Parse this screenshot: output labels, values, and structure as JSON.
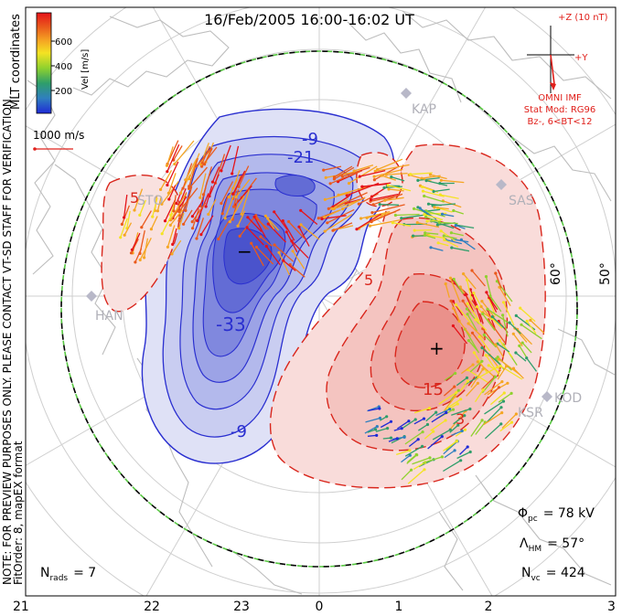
{
  "title": "16/Feb/2005 16:00-16:02 UT",
  "colorbar": {
    "label": "Vel [m/s]",
    "ticks": [
      "600",
      "400",
      "200"
    ],
    "colors": [
      "#1f2bd6",
      "#2f7fbf",
      "#2e9e6a",
      "#8fd12e",
      "#f4e323",
      "#f5a623",
      "#ea5a1c",
      "#e5131a"
    ]
  },
  "coordinates_label": "MLT coordinates",
  "scale": {
    "label": "1000 m/s",
    "color": "#e0201b"
  },
  "imf": {
    "z_label": "+Z (10 nT)",
    "y_label": "+Y",
    "source": "OMNI IMF",
    "model": "Stat Mod: RG96",
    "condition": "Bz-, 6<BT<12",
    "color": "#e0201b"
  },
  "notes": {
    "preview": "NOTE: FOR PREVIEW PURPOSES ONLY. PLEASE CONTACT VT-SD STAFF FOR VERIFICATION.",
    "fit": "FitOrder: 8, mapEX format"
  },
  "stats": {
    "phi_pc_sym": "Φ",
    "phi_pc_sub": "pc",
    "phi_pc_val": "= 78 kV",
    "lambda_hm_sym": "Λ",
    "lambda_hm_sub": "HM",
    "lambda_hm_val": "= 57°",
    "n_vc_sym": "N",
    "n_vc_sub": "vc",
    "n_vc_val": "= 424"
  },
  "n_rads": {
    "sym": "N",
    "sub": "rads",
    "val": "= 7"
  },
  "lat_labels": [
    "60°",
    "50°"
  ],
  "stations": [
    "KAP",
    "SAS",
    "STO",
    "HAN",
    "KOD",
    "KSR"
  ],
  "mlt_axis": [
    "21",
    "22",
    "23",
    "0",
    "1",
    "2",
    "3"
  ],
  "contour_labels": [
    "-9",
    "-21",
    "-33",
    "-9",
    "15",
    "-15",
    "5",
    "3"
  ],
  "extrema": {
    "min": "−",
    "max": "+"
  },
  "colors": {
    "negative": "#2a2fd0",
    "positive": "#d9261c",
    "boundary": "#58c742",
    "land": "#c8c8c8",
    "grid": "#cfcfcf"
  }
}
